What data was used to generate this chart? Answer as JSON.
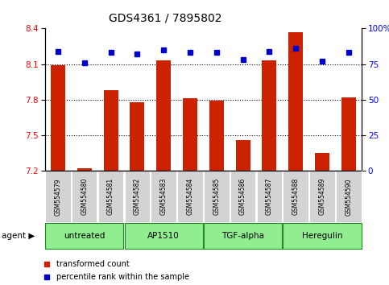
{
  "title": "GDS4361 / 7895802",
  "samples": [
    "GSM554579",
    "GSM554580",
    "GSM554581",
    "GSM554582",
    "GSM554583",
    "GSM554584",
    "GSM554585",
    "GSM554586",
    "GSM554587",
    "GSM554588",
    "GSM554589",
    "GSM554590"
  ],
  "red_values": [
    8.09,
    7.22,
    7.88,
    7.78,
    8.13,
    7.81,
    7.79,
    7.46,
    8.13,
    8.37,
    7.35,
    7.82
  ],
  "blue_values": [
    84,
    76,
    83,
    82,
    85,
    83,
    83,
    78,
    84,
    86,
    77,
    83
  ],
  "ylim_left": [
    7.2,
    8.4
  ],
  "ylim_right": [
    0,
    100
  ],
  "yticks_left": [
    7.2,
    7.5,
    7.8,
    8.1,
    8.4
  ],
  "yticks_right": [
    0,
    25,
    50,
    75,
    100
  ],
  "ytick_labels_right": [
    "0",
    "25",
    "50",
    "75",
    "100%"
  ],
  "grid_lines": [
    7.5,
    7.8,
    8.1
  ],
  "agent_groups": [
    {
      "label": "untreated",
      "start": 0,
      "end": 3
    },
    {
      "label": "AP1510",
      "start": 3,
      "end": 6
    },
    {
      "label": "TGF-alpha",
      "start": 6,
      "end": 9
    },
    {
      "label": "Heregulin",
      "start": 9,
      "end": 12
    }
  ],
  "bar_color": "#cc2200",
  "dot_color": "#0000cc",
  "agent_bg_color": "#90ee90",
  "agent_bg_color_light": "#e8f8e8",
  "tick_label_bg": "#d3d3d3",
  "legend_items": [
    {
      "label": "transformed count",
      "color": "#cc2200"
    },
    {
      "label": "percentile rank within the sample",
      "color": "#0000cc"
    }
  ]
}
